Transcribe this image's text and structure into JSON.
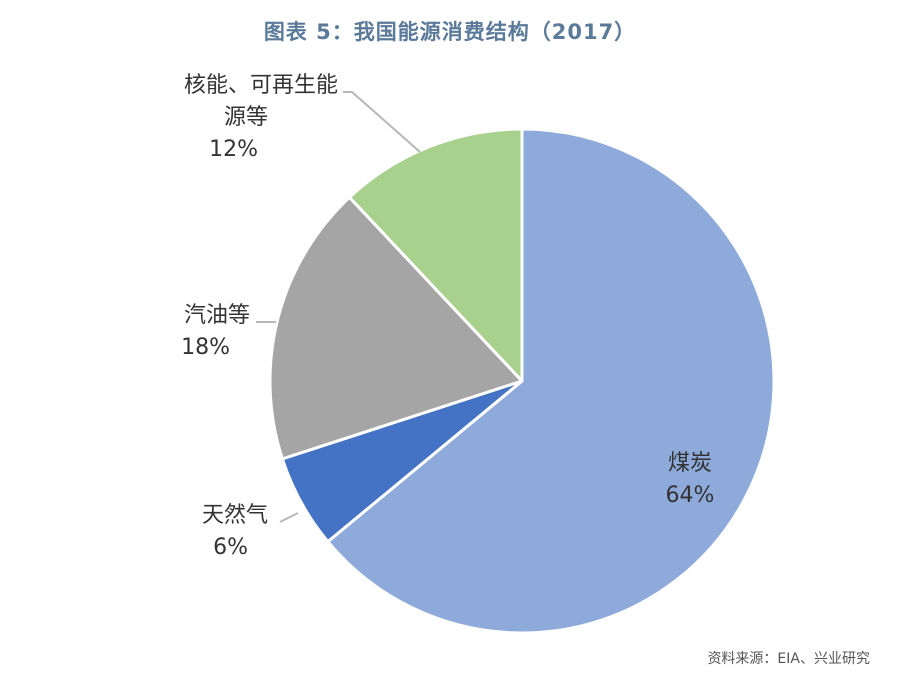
{
  "title": "图表 5：我国能源消费结构（2017）",
  "source": "资料来源：EIA、兴业研究",
  "chart_data": {
    "type": "pie",
    "start_angle_deg": 0,
    "direction": "clockwise",
    "slices": [
      {
        "name": "煤炭",
        "label_lines": [
          "煤炭"
        ],
        "value": 64,
        "value_label": "64%",
        "color": "#8eaadb"
      },
      {
        "name": "天然气",
        "label_lines": [
          "天然气"
        ],
        "value": 6,
        "value_label": "6%",
        "color": "#4472c4"
      },
      {
        "name": "汽油等",
        "label_lines": [
          "汽油等"
        ],
        "value": 18,
        "value_label": "18%",
        "color": "#a5a5a5"
      },
      {
        "name": "核能、可再生能源等",
        "label_lines": [
          "核能、可再生能",
          "源等"
        ],
        "value": 12,
        "value_label": "12%",
        "color": "#a9d18e"
      }
    ]
  }
}
